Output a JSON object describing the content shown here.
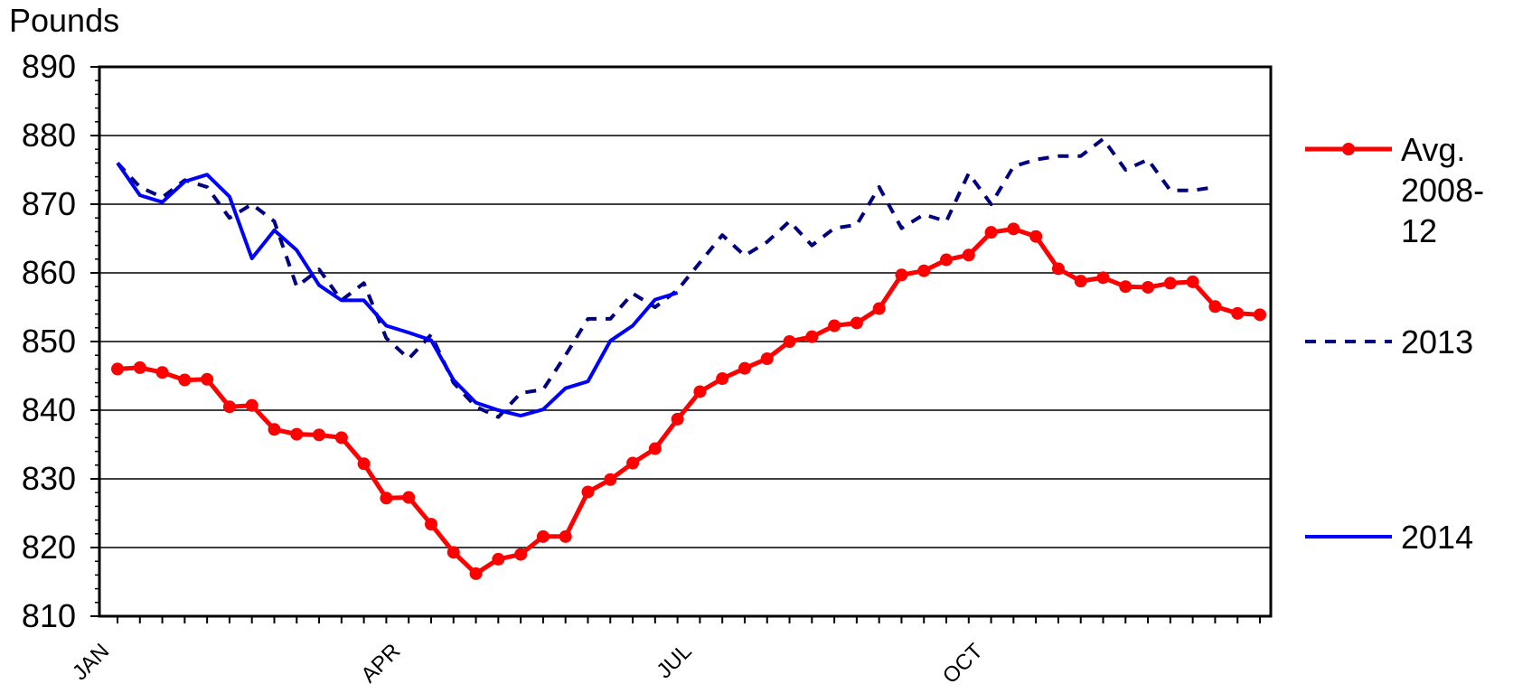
{
  "chart_data": {
    "type": "line",
    "ylabel": "Pounds",
    "ylim": [
      810,
      890
    ],
    "yticks": [
      810,
      820,
      830,
      840,
      850,
      860,
      870,
      880,
      890
    ],
    "xticks": [
      "JAN",
      "APR",
      "JUL",
      "OCT"
    ],
    "x_weeks_total": 52,
    "grid": true,
    "legend_placement": "right",
    "series": [
      {
        "name": "Avg. 2008-12",
        "style": "solid-markers",
        "color": "#ff0000",
        "legend_lines": [
          "Avg.",
          "2008-",
          "12"
        ],
        "values": [
          846,
          846.2,
          845.5,
          844.4,
          844.5,
          840.5,
          840.7,
          837.2,
          836.5,
          836.4,
          836,
          832.2,
          827.2,
          827.3,
          823.4,
          819.3,
          816.2,
          818.3,
          819,
          821.6,
          821.6,
          828.1,
          829.9,
          832.3,
          834.4,
          838.7,
          842.7,
          844.6,
          846.1,
          847.5,
          850,
          850.7,
          852.3,
          852.7,
          854.8,
          859.7,
          860.3,
          861.9,
          862.6,
          865.9,
          866.4,
          865.3,
          860.6,
          858.8,
          859.3,
          858,
          857.9,
          858.5,
          858.7,
          855.1,
          854.1,
          853.9
        ]
      },
      {
        "name": "2013",
        "style": "dashed",
        "color": "#000080",
        "legend_lines": [
          "2013"
        ],
        "values": [
          876,
          872.5,
          871,
          873.5,
          872.5,
          868,
          870,
          867.5,
          858,
          860.5,
          856,
          858.5,
          850.5,
          847.5,
          851,
          844,
          840.5,
          839,
          842.5,
          843,
          848,
          853.3,
          853.3,
          857,
          855,
          857.5,
          861.5,
          865.5,
          862.5,
          864.5,
          867.5,
          864,
          866.5,
          867,
          872.5,
          866.5,
          868.5,
          867.5,
          874.5,
          870,
          875.5,
          876.5,
          877,
          877,
          879.5,
          875,
          876.5,
          872,
          872,
          872.5
        ]
      },
      {
        "name": "2014",
        "style": "solid",
        "color": "#0000ff",
        "legend_lines": [
          "2014"
        ],
        "values": [
          876,
          871.3,
          870.3,
          873.3,
          874.3,
          871.1,
          862.1,
          866.2,
          863.3,
          858.2,
          856,
          856,
          852.3,
          851.3,
          850.2,
          844.4,
          841.1,
          840,
          839.2,
          840.1,
          843.2,
          844.2,
          850.1,
          852.3,
          856.1,
          857.1
        ]
      }
    ]
  }
}
